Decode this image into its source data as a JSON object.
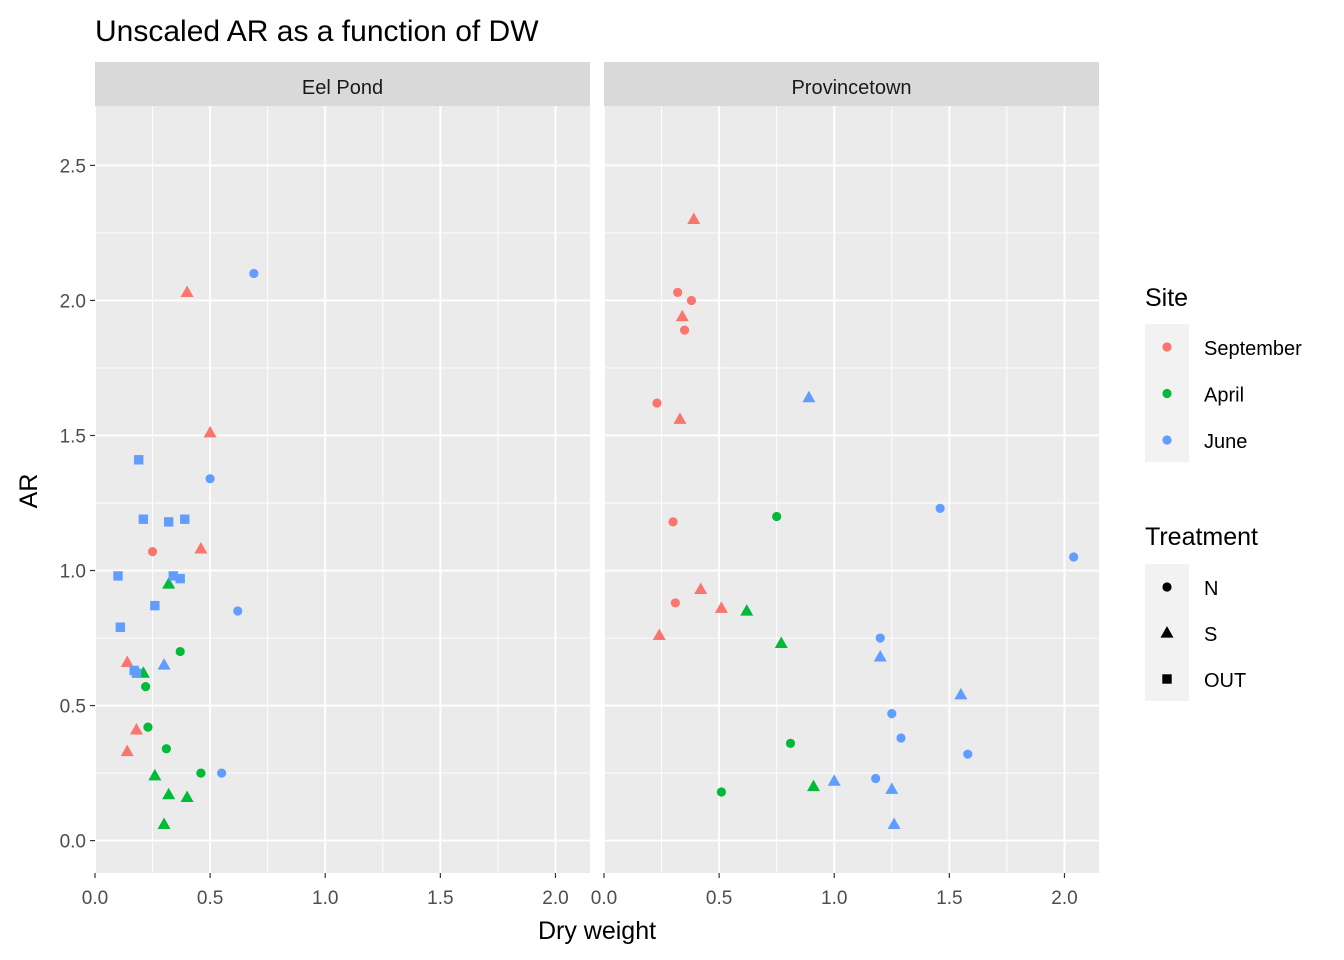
{
  "chart_data": {
    "type": "scatter",
    "title": "Unscaled AR as a function of DW",
    "xlabel": "Dry weight",
    "ylabel": "AR",
    "xlim": [
      0,
      2.15
    ],
    "ylim": [
      -0.12,
      2.72
    ],
    "x_ticks": [
      0.0,
      0.5,
      1.0,
      1.5,
      2.0
    ],
    "x_tick_labels": [
      "0.0",
      "0.5",
      "1.0",
      "1.5",
      "2.0"
    ],
    "y_ticks": [
      0.0,
      0.5,
      1.0,
      1.5,
      2.0,
      2.5
    ],
    "y_tick_labels": [
      "0.0",
      "0.5",
      "1.0",
      "1.5",
      "2.0",
      "2.5"
    ],
    "grid": true,
    "legend_position": "right",
    "color_legend": {
      "title": "Site",
      "entries": [
        {
          "label": "September",
          "color": "#F8766D"
        },
        {
          "label": "April",
          "color": "#00BA38"
        },
        {
          "label": "June",
          "color": "#619CFF"
        }
      ]
    },
    "shape_legend": {
      "title": "Treatment",
      "entries": [
        {
          "label": "N",
          "shape": "circle"
        },
        {
          "label": "S",
          "shape": "triangle"
        },
        {
          "label": "OUT",
          "shape": "square"
        }
      ]
    },
    "panels": [
      {
        "label": "Eel Pond",
        "points": [
          {
            "x": 0.4,
            "y": 2.03,
            "site": "September",
            "treatment": "S"
          },
          {
            "x": 0.5,
            "y": 1.51,
            "site": "September",
            "treatment": "S"
          },
          {
            "x": 0.46,
            "y": 1.08,
            "site": "September",
            "treatment": "S"
          },
          {
            "x": 0.25,
            "y": 1.07,
            "site": "September",
            "treatment": "N"
          },
          {
            "x": 0.14,
            "y": 0.66,
            "site": "September",
            "treatment": "S"
          },
          {
            "x": 0.18,
            "y": 0.41,
            "site": "September",
            "treatment": "S"
          },
          {
            "x": 0.14,
            "y": 0.33,
            "site": "September",
            "treatment": "S"
          },
          {
            "x": 0.32,
            "y": 0.95,
            "site": "April",
            "treatment": "S"
          },
          {
            "x": 0.37,
            "y": 0.7,
            "site": "April",
            "treatment": "N"
          },
          {
            "x": 0.21,
            "y": 0.62,
            "site": "April",
            "treatment": "S"
          },
          {
            "x": 0.22,
            "y": 0.57,
            "site": "April",
            "treatment": "N"
          },
          {
            "x": 0.23,
            "y": 0.42,
            "site": "April",
            "treatment": "N"
          },
          {
            "x": 0.31,
            "y": 0.34,
            "site": "April",
            "treatment": "N"
          },
          {
            "x": 0.46,
            "y": 0.25,
            "site": "April",
            "treatment": "N"
          },
          {
            "x": 0.26,
            "y": 0.24,
            "site": "April",
            "treatment": "S"
          },
          {
            "x": 0.32,
            "y": 0.17,
            "site": "April",
            "treatment": "S"
          },
          {
            "x": 0.4,
            "y": 0.16,
            "site": "April",
            "treatment": "S"
          },
          {
            "x": 0.3,
            "y": 0.06,
            "site": "April",
            "treatment": "S"
          },
          {
            "x": 0.69,
            "y": 2.1,
            "site": "June",
            "treatment": "N"
          },
          {
            "x": 0.5,
            "y": 1.34,
            "site": "June",
            "treatment": "N"
          },
          {
            "x": 0.62,
            "y": 0.85,
            "site": "June",
            "treatment": "N"
          },
          {
            "x": 0.3,
            "y": 0.65,
            "site": "June",
            "treatment": "S"
          },
          {
            "x": 0.55,
            "y": 0.25,
            "site": "June",
            "treatment": "N"
          },
          {
            "x": 0.19,
            "y": 1.41,
            "site": "June",
            "treatment": "OUT"
          },
          {
            "x": 0.21,
            "y": 1.19,
            "site": "June",
            "treatment": "OUT"
          },
          {
            "x": 0.32,
            "y": 1.18,
            "site": "June",
            "treatment": "OUT"
          },
          {
            "x": 0.39,
            "y": 1.19,
            "site": "June",
            "treatment": "OUT"
          },
          {
            "x": 0.1,
            "y": 0.98,
            "site": "June",
            "treatment": "OUT"
          },
          {
            "x": 0.34,
            "y": 0.98,
            "site": "June",
            "treatment": "OUT"
          },
          {
            "x": 0.37,
            "y": 0.97,
            "site": "June",
            "treatment": "OUT"
          },
          {
            "x": 0.26,
            "y": 0.87,
            "site": "June",
            "treatment": "OUT"
          },
          {
            "x": 0.11,
            "y": 0.79,
            "site": "June",
            "treatment": "OUT"
          },
          {
            "x": 0.17,
            "y": 0.63,
            "site": "June",
            "treatment": "OUT"
          },
          {
            "x": 0.18,
            "y": 0.62,
            "site": "June",
            "treatment": "OUT"
          }
        ]
      },
      {
        "label": "Provincetown",
        "points": [
          {
            "x": 0.39,
            "y": 2.3,
            "site": "September",
            "treatment": "S"
          },
          {
            "x": 0.32,
            "y": 2.03,
            "site": "September",
            "treatment": "N"
          },
          {
            "x": 0.38,
            "y": 2.0,
            "site": "September",
            "treatment": "N"
          },
          {
            "x": 0.34,
            "y": 1.94,
            "site": "September",
            "treatment": "S"
          },
          {
            "x": 0.35,
            "y": 1.89,
            "site": "September",
            "treatment": "N"
          },
          {
            "x": 0.23,
            "y": 1.62,
            "site": "September",
            "treatment": "N"
          },
          {
            "x": 0.33,
            "y": 1.56,
            "site": "September",
            "treatment": "S"
          },
          {
            "x": 0.3,
            "y": 1.18,
            "site": "September",
            "treatment": "N"
          },
          {
            "x": 0.42,
            "y": 0.93,
            "site": "September",
            "treatment": "S"
          },
          {
            "x": 0.31,
            "y": 0.88,
            "site": "September",
            "treatment": "N"
          },
          {
            "x": 0.51,
            "y": 0.86,
            "site": "September",
            "treatment": "S"
          },
          {
            "x": 0.24,
            "y": 0.76,
            "site": "September",
            "treatment": "S"
          },
          {
            "x": 0.75,
            "y": 1.2,
            "site": "April",
            "treatment": "N"
          },
          {
            "x": 0.62,
            "y": 0.85,
            "site": "April",
            "treatment": "S"
          },
          {
            "x": 0.77,
            "y": 0.73,
            "site": "April",
            "treatment": "S"
          },
          {
            "x": 0.81,
            "y": 0.36,
            "site": "April",
            "treatment": "N"
          },
          {
            "x": 0.91,
            "y": 0.2,
            "site": "April",
            "treatment": "S"
          },
          {
            "x": 0.51,
            "y": 0.18,
            "site": "April",
            "treatment": "N"
          },
          {
            "x": 0.89,
            "y": 1.64,
            "site": "June",
            "treatment": "S"
          },
          {
            "x": 1.46,
            "y": 1.23,
            "site": "June",
            "treatment": "N"
          },
          {
            "x": 2.04,
            "y": 1.05,
            "site": "June",
            "treatment": "N"
          },
          {
            "x": 1.2,
            "y": 0.75,
            "site": "June",
            "treatment": "N"
          },
          {
            "x": 1.2,
            "y": 0.68,
            "site": "June",
            "treatment": "S"
          },
          {
            "x": 1.55,
            "y": 0.54,
            "site": "June",
            "treatment": "S"
          },
          {
            "x": 1.25,
            "y": 0.47,
            "site": "June",
            "treatment": "N"
          },
          {
            "x": 1.29,
            "y": 0.38,
            "site": "June",
            "treatment": "N"
          },
          {
            "x": 1.58,
            "y": 0.32,
            "site": "June",
            "treatment": "N"
          },
          {
            "x": 1.18,
            "y": 0.23,
            "site": "June",
            "treatment": "N"
          },
          {
            "x": 1.0,
            "y": 0.22,
            "site": "June",
            "treatment": "S"
          },
          {
            "x": 1.25,
            "y": 0.19,
            "site": "June",
            "treatment": "S"
          },
          {
            "x": 1.26,
            "y": 0.06,
            "site": "June",
            "treatment": "S"
          }
        ]
      }
    ]
  }
}
